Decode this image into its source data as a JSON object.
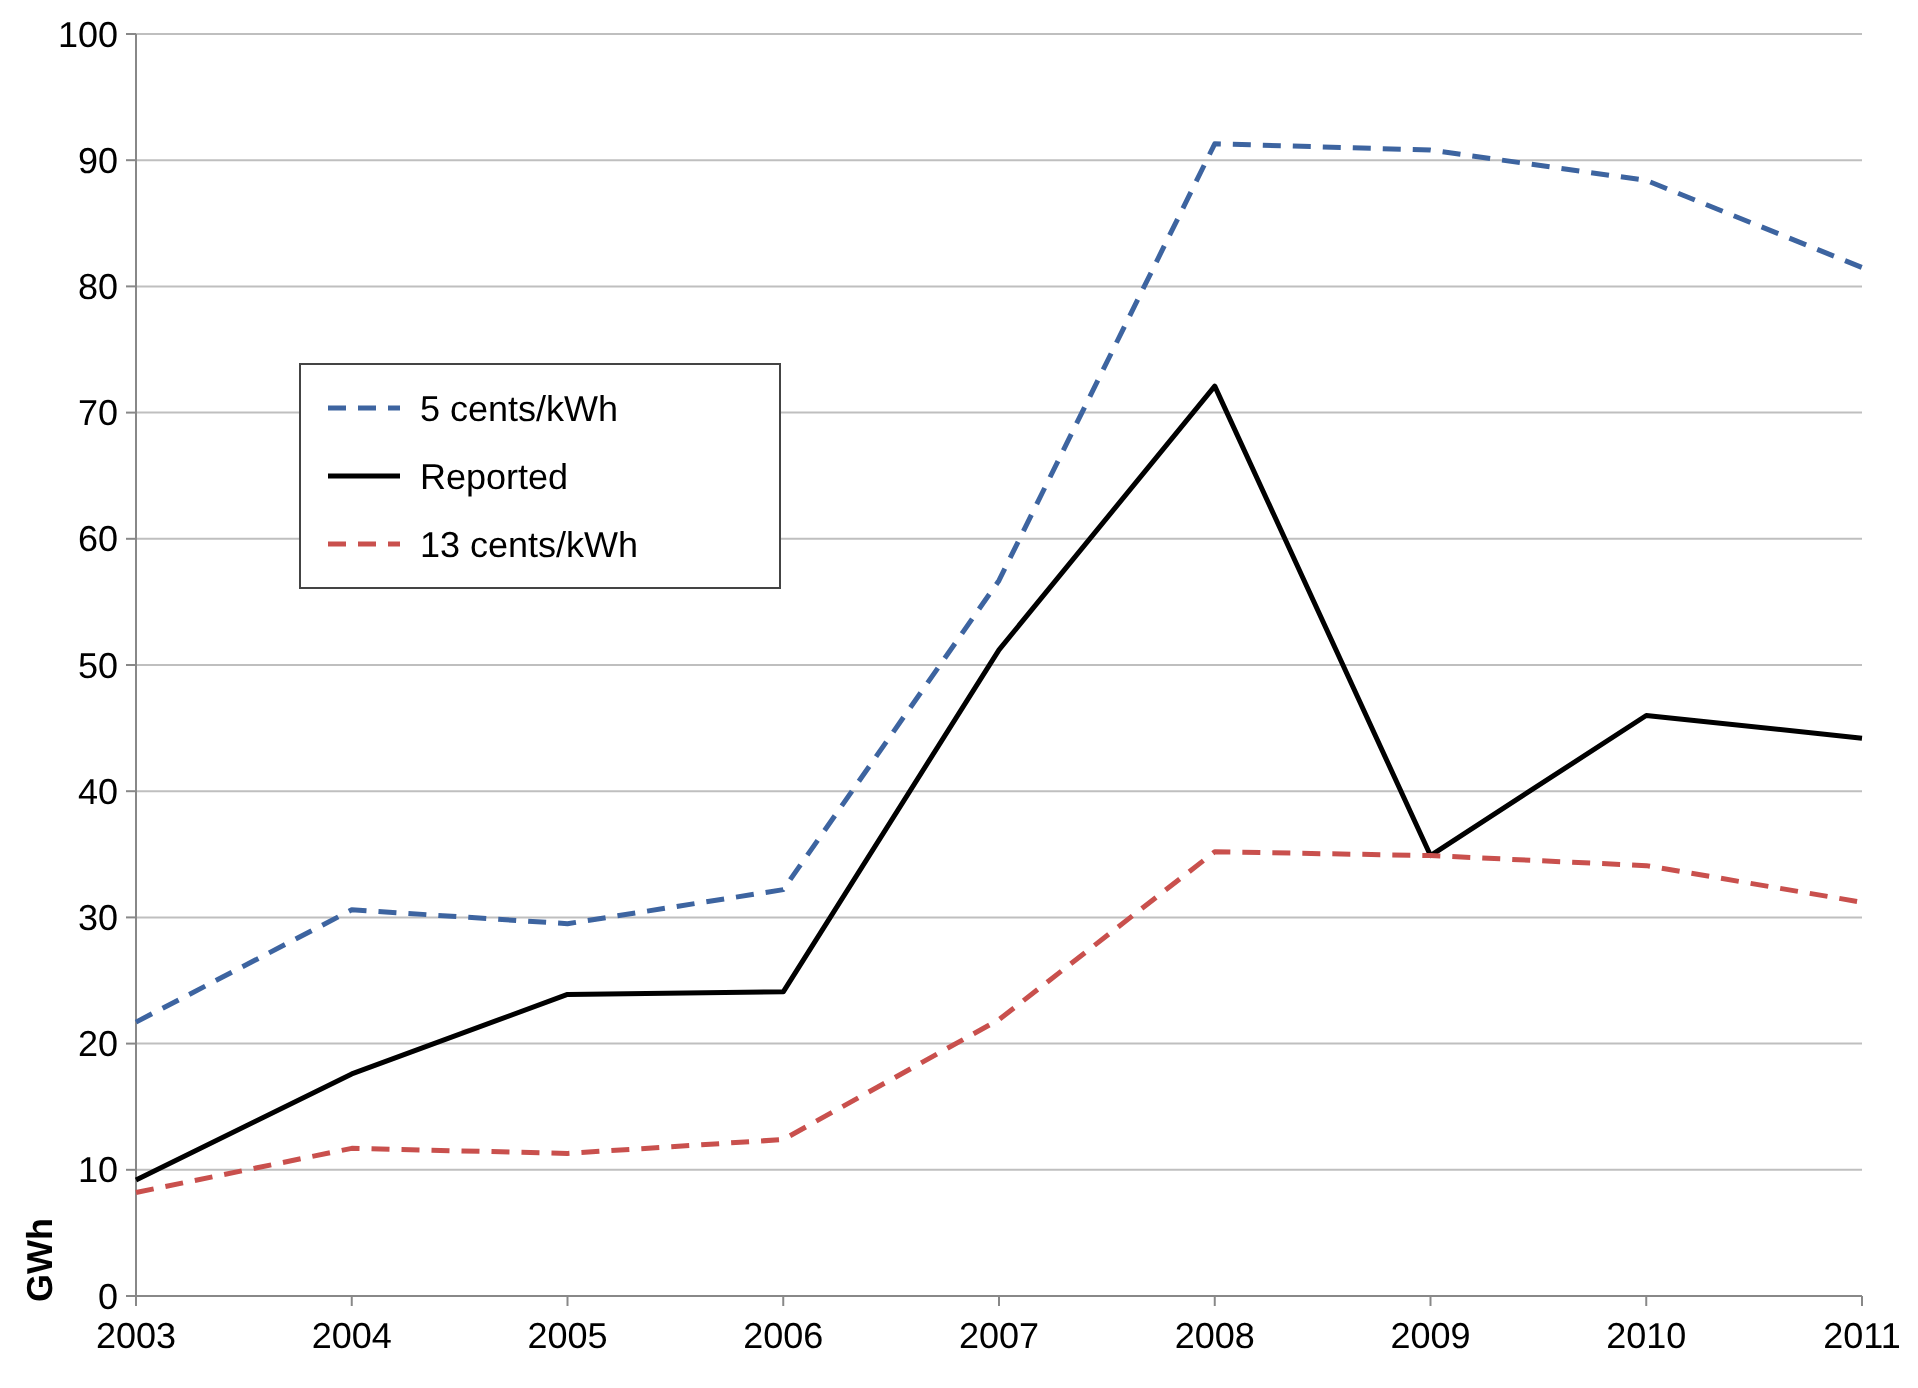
{
  "chart_data": {
    "type": "line",
    "ylabel": "GWh",
    "x": [
      2003,
      2004,
      2005,
      2006,
      2007,
      2008,
      2009,
      2010,
      2011
    ],
    "series": [
      {
        "name": "5 cents/kWh",
        "color": "#3d64a0",
        "line_style": "dashed",
        "values": [
          21.7,
          30.6,
          29.5,
          32.2,
          56.7,
          91.3,
          90.8,
          88.4,
          81.5
        ]
      },
      {
        "name": "Reported",
        "color": "#000000",
        "line_style": "solid",
        "values": [
          9.2,
          17.6,
          23.9,
          24.1,
          51.2,
          72.1,
          34.9,
          46.0,
          44.2
        ]
      },
      {
        "name": "13 cents/kWh",
        "color": "#c9504d",
        "line_style": "dashed",
        "values": [
          8.2,
          11.7,
          11.3,
          12.4,
          21.9,
          35.2,
          34.9,
          34.1,
          31.2
        ]
      }
    ],
    "xlim": [
      2003,
      2011
    ],
    "xticks": [
      2003,
      2004,
      2005,
      2006,
      2007,
      2008,
      2009,
      2010,
      2011
    ],
    "ylim": [
      0,
      100
    ],
    "yticks": [
      0,
      10,
      20,
      30,
      40,
      50,
      60,
      70,
      80,
      90,
      100
    ],
    "grid": "y",
    "legend": "top left"
  }
}
